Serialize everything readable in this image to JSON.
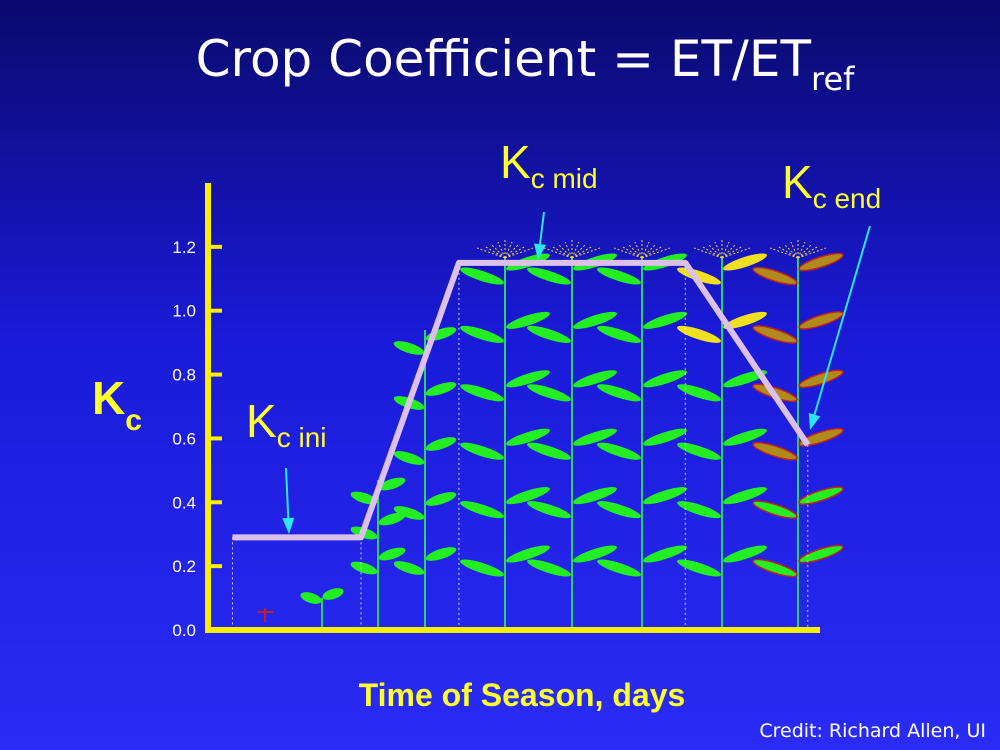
{
  "title": {
    "main": "Crop Coefficient = ET/ET",
    "sub": "ref"
  },
  "credit": "Credit: Richard Allen, UI",
  "colors": {
    "axis": "#ffee00",
    "curve": "#dcc0ee",
    "pointer": "#2ce6f0",
    "label": "#ffff2e",
    "leaf": "#22ee22",
    "stem": "#2fcf6a",
    "tassel": "#f0d040"
  },
  "chart_data": {
    "type": "line",
    "xlabel": "Time of Season, days",
    "ylabel": {
      "main": "K",
      "sub": "c"
    },
    "ylim": [
      0,
      1.4
    ],
    "yticks": [
      "0.0",
      "0.2",
      "0.4",
      "0.6",
      "0.8",
      "1.0",
      "1.2"
    ],
    "series": [
      {
        "values": [
          {
            "x": 0.04,
            "y": 0.29
          },
          {
            "x": 0.25,
            "y": 0.29
          },
          {
            "x": 0.41,
            "y": 1.15
          },
          {
            "x": 0.78,
            "y": 1.15
          },
          {
            "x": 0.98,
            "y": 0.58
          }
        ]
      }
    ],
    "annotations": [
      {
        "main": "K",
        "sub": "c ini",
        "x": 0.13,
        "y": 0.29
      },
      {
        "main": "K",
        "sub": "c mid",
        "x": 0.54,
        "y": 1.15
      },
      {
        "main": "K",
        "sub": "c end",
        "x": 0.98,
        "y": 0.58
      }
    ]
  }
}
